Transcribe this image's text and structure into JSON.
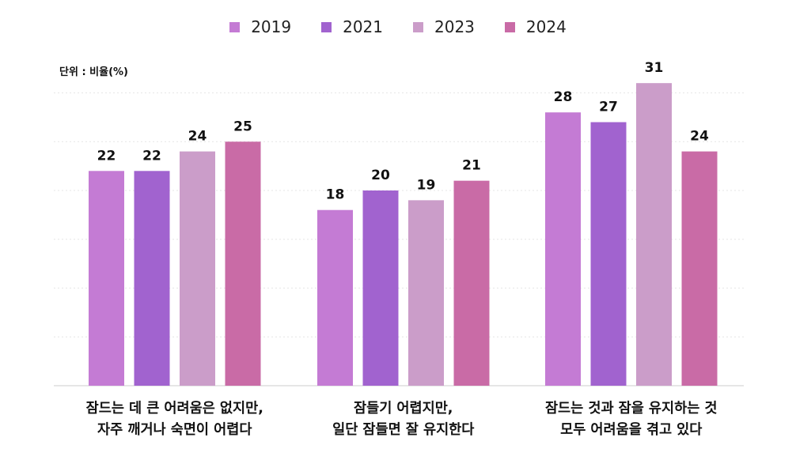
{
  "chart_data": {
    "type": "bar",
    "unit_label": "단위 : 비율(%)",
    "categories": [
      [
        "잠드는 데 큰 어려움은 없지만,",
        "자주 깨거나 숙면이 어렵다"
      ],
      [
        "잠들기 어렵지만,",
        "일단 잠들면 잘 유지한다"
      ],
      [
        "잠드는 것과 잠을 유지하는 것",
        "모두 어려움을 겪고 있다"
      ]
    ],
    "series": [
      {
        "name": "2019",
        "color": "#c47bd4",
        "values": [
          22,
          18,
          28
        ]
      },
      {
        "name": "2021",
        "color": "#a163cf",
        "values": [
          22,
          20,
          27
        ]
      },
      {
        "name": "2023",
        "color": "#cb9dc9",
        "values": [
          24,
          19,
          31
        ]
      },
      {
        "name": "2024",
        "color": "#c96ba6",
        "values": [
          25,
          21,
          24
        ]
      }
    ],
    "ylim": [
      0,
      32
    ],
    "grid": true,
    "legend_position": "top-center"
  }
}
